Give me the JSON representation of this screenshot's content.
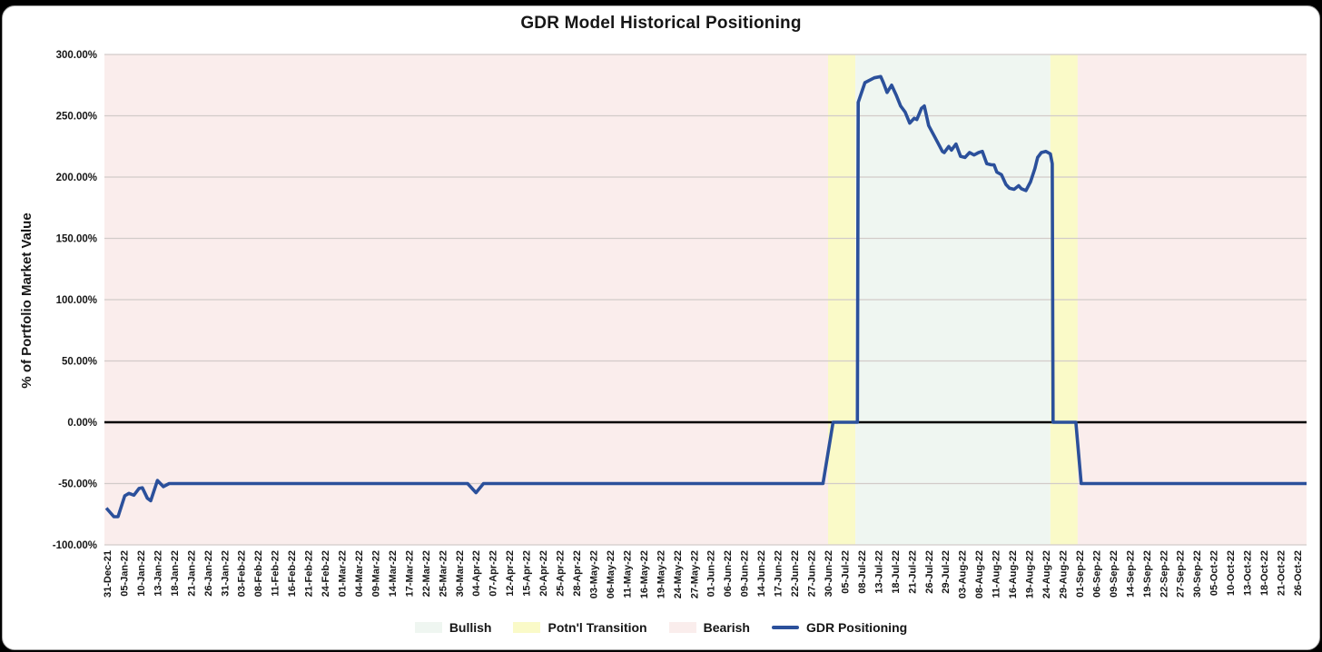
{
  "page": {
    "backdrop_color": "#000000",
    "card_color": "#ffffff"
  },
  "chart_data": {
    "type": "line",
    "title": "GDR Model Historical Positioning",
    "ylabel": "% of Portfolio Market Value",
    "ylim": [
      -100,
      300
    ],
    "grid_on": true,
    "grid_color": "#d2cbc9",
    "zero_line_color": "#000000",
    "y_ticks": [
      {
        "value": 300,
        "label": "300.00%"
      },
      {
        "value": 250,
        "label": "250.00%"
      },
      {
        "value": 200,
        "label": "200.00%"
      },
      {
        "value": 150,
        "label": "150.00%"
      },
      {
        "value": 100,
        "label": "100.00%"
      },
      {
        "value": 50,
        "label": "50.00%"
      },
      {
        "value": 0,
        "label": "0.00%"
      },
      {
        "value": -50,
        "label": "-50.00%"
      },
      {
        "value": -100,
        "label": "-100.00%"
      }
    ],
    "x_labels": [
      "31-Dec-21",
      "05-Jan-22",
      "10-Jan-22",
      "13-Jan-22",
      "18-Jan-22",
      "21-Jan-22",
      "26-Jan-22",
      "31-Jan-22",
      "03-Feb-22",
      "08-Feb-22",
      "11-Feb-22",
      "16-Feb-22",
      "21-Feb-22",
      "24-Feb-22",
      "01-Mar-22",
      "04-Mar-22",
      "09-Mar-22",
      "14-Mar-22",
      "17-Mar-22",
      "22-Mar-22",
      "25-Mar-22",
      "30-Mar-22",
      "04-Apr-22",
      "07-Apr-22",
      "12-Apr-22",
      "15-Apr-22",
      "20-Apr-22",
      "25-Apr-22",
      "28-Apr-22",
      "03-May-22",
      "06-May-22",
      "11-May-22",
      "16-May-22",
      "19-May-22",
      "24-May-22",
      "27-May-22",
      "01-Jun-22",
      "06-Jun-22",
      "09-Jun-22",
      "14-Jun-22",
      "17-Jun-22",
      "22-Jun-22",
      "27-Jun-22",
      "30-Jun-22",
      "05-Jul-22",
      "08-Jul-22",
      "13-Jul-22",
      "18-Jul-22",
      "21-Jul-22",
      "26-Jul-22",
      "29-Jul-22",
      "03-Aug-22",
      "08-Aug-22",
      "11-Aug-22",
      "16-Aug-22",
      "19-Aug-22",
      "24-Aug-22",
      "29-Aug-22",
      "01-Sep-22",
      "06-Sep-22",
      "09-Sep-22",
      "14-Sep-22",
      "19-Sep-22",
      "22-Sep-22",
      "27-Sep-22",
      "30-Sep-22",
      "05-Oct-22",
      "10-Oct-22",
      "13-Oct-22",
      "18-Oct-22",
      "21-Oct-22",
      "26-Oct-22"
    ],
    "x_axis": {
      "min_index": -0.16,
      "max_index": 71.54
    },
    "regions": [
      {
        "name": "Bearish",
        "start": -0.16,
        "end": 43.0,
        "color": "#faedec"
      },
      {
        "name": "Potn'l Transition",
        "start": 43.0,
        "end": 44.63,
        "color": "#fafac8"
      },
      {
        "name": "Bullish",
        "start": 44.63,
        "end": 56.26,
        "color": "#eff6f1"
      },
      {
        "name": "Potn'l Transition",
        "start": 56.26,
        "end": 57.89,
        "color": "#fafac8"
      },
      {
        "name": "Bearish",
        "start": 57.89,
        "end": 71.54,
        "color": "#faedec"
      }
    ],
    "series": [
      {
        "name": "GDR Positioning",
        "color": "#2b509b",
        "points": [
          [
            -0.05,
            -70
          ],
          [
            0.4,
            -77
          ],
          [
            0.65,
            -77
          ],
          [
            1.05,
            -60
          ],
          [
            1.3,
            -58
          ],
          [
            1.6,
            -59.5
          ],
          [
            1.9,
            -54
          ],
          [
            2.1,
            -53.5
          ],
          [
            2.4,
            -62
          ],
          [
            2.6,
            -64
          ],
          [
            3.0,
            -47.5
          ],
          [
            3.35,
            -52.5
          ],
          [
            3.7,
            -50
          ],
          [
            21.5,
            -50
          ],
          [
            22.0,
            -57.5
          ],
          [
            22.45,
            -50
          ],
          [
            42.7,
            -50
          ],
          [
            43.3,
            0
          ],
          [
            44.75,
            0
          ],
          [
            44.8,
            261
          ],
          [
            45.2,
            277
          ],
          [
            45.76,
            281
          ],
          [
            46.14,
            282
          ],
          [
            46.3,
            277
          ],
          [
            46.52,
            269
          ],
          [
            46.79,
            275
          ],
          [
            47.06,
            267
          ],
          [
            47.33,
            258
          ],
          [
            47.6,
            253
          ],
          [
            47.87,
            244
          ],
          [
            48.14,
            248
          ],
          [
            48.3,
            247
          ],
          [
            48.57,
            256
          ],
          [
            48.74,
            258
          ],
          [
            49.0,
            242
          ],
          [
            49.28,
            235
          ],
          [
            49.55,
            228
          ],
          [
            49.82,
            221
          ],
          [
            49.93,
            220
          ],
          [
            50.2,
            225
          ],
          [
            50.36,
            222
          ],
          [
            50.63,
            227
          ],
          [
            50.9,
            217
          ],
          [
            51.17,
            216
          ],
          [
            51.44,
            220
          ],
          [
            51.71,
            218
          ],
          [
            51.98,
            220
          ],
          [
            52.2,
            221
          ],
          [
            52.47,
            211
          ],
          [
            52.74,
            210
          ],
          [
            52.9,
            210
          ],
          [
            53.07,
            204
          ],
          [
            53.34,
            202
          ],
          [
            53.61,
            194
          ],
          [
            53.82,
            191
          ],
          [
            54.1,
            190
          ],
          [
            54.37,
            193
          ],
          [
            54.53,
            190.5
          ],
          [
            54.8,
            189
          ],
          [
            55.07,
            196
          ],
          [
            55.34,
            207
          ],
          [
            55.5,
            216
          ],
          [
            55.72,
            220
          ],
          [
            55.99,
            221
          ],
          [
            56.26,
            219
          ],
          [
            56.37,
            211
          ],
          [
            56.42,
            0
          ],
          [
            57.78,
            0
          ],
          [
            58.1,
            -50
          ],
          [
            71.54,
            -50
          ]
        ]
      }
    ],
    "legend_position": "bottom"
  },
  "legend": {
    "items": [
      {
        "label": "Bullish",
        "color": "#eff6f1",
        "marker": "swatch"
      },
      {
        "label": "Potn'l Transition",
        "color": "#fafac8",
        "marker": "swatch"
      },
      {
        "label": "Bearish",
        "color": "#faedec",
        "marker": "swatch"
      },
      {
        "label": "GDR Positioning",
        "color": "#2b509b",
        "marker": "line"
      }
    ]
  }
}
